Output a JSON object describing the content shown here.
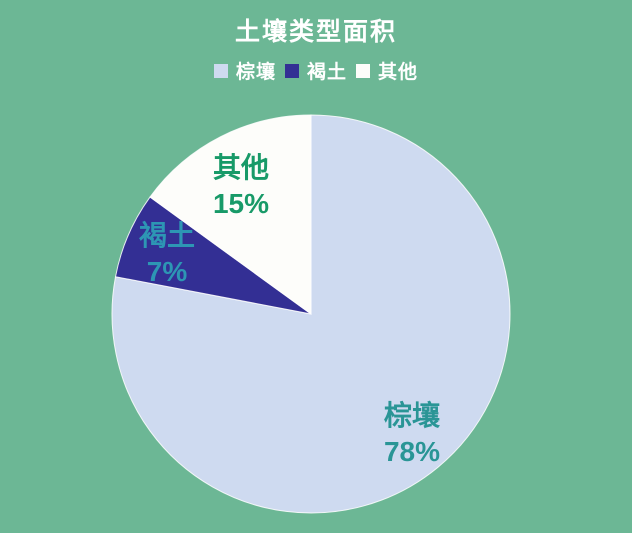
{
  "page": {
    "background_color": "#6cb795"
  },
  "header": {
    "title": "土壤类型面积",
    "title_color": "#ffffff"
  },
  "chart_data": {
    "type": "pie",
    "title": "土壤类型面积",
    "categories": [
      "棕壤",
      "褐土",
      "其他"
    ],
    "values": [
      78,
      7,
      15
    ],
    "start_angle": "12-oclock",
    "direction": "clockwise",
    "legend_position": "top",
    "labels_on_chart": true,
    "slices": [
      {
        "name": "棕壤",
        "value": 78,
        "pct_label": "78%",
        "color": "#cedaf0",
        "label_color": "#2a9596"
      },
      {
        "name": "褐土",
        "value": 7,
        "pct_label": "7%",
        "color": "#332f94",
        "label_color": "#2d96b4"
      },
      {
        "name": "其他",
        "value": 15,
        "pct_label": "15%",
        "color": "#fdfdfa",
        "label_color": "#189a68"
      }
    ]
  }
}
